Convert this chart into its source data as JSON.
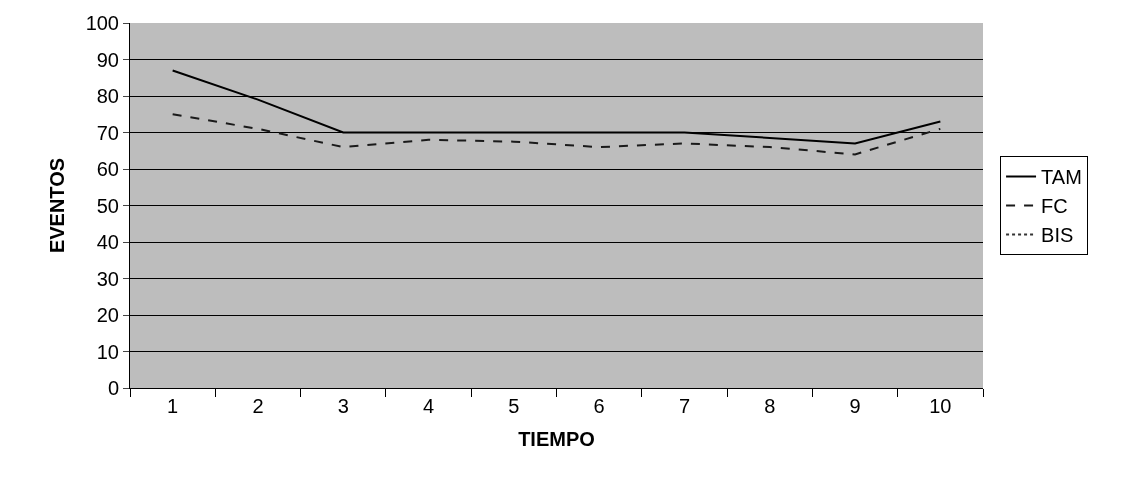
{
  "chart_data": {
    "type": "line",
    "xlabel": "TIEMPO",
    "ylabel": "EVENTOS",
    "categories": [
      "1",
      "2",
      "3",
      "4",
      "5",
      "6",
      "7",
      "8",
      "9",
      "10"
    ],
    "series": [
      {
        "name": "TAM",
        "color": "#000000",
        "line_style": "solid",
        "values": [
          87,
          79,
          70,
          70,
          70,
          70,
          70,
          68.5,
          67,
          73
        ]
      },
      {
        "name": "FC",
        "color": "#1a1a1a",
        "line_style": "dashed",
        "values": [
          75,
          71,
          66,
          68,
          67.5,
          66,
          67,
          66,
          64,
          71
        ]
      },
      {
        "name": "BIS",
        "color": "#333333",
        "line_style": "dotted",
        "values": [
          null,
          null,
          null,
          null,
          null,
          null,
          null,
          null,
          null,
          null
        ]
      }
    ],
    "ylim": [
      0,
      100
    ],
    "yticks": [
      0,
      10,
      20,
      30,
      40,
      50,
      60,
      70,
      80,
      90,
      100
    ],
    "grid": "y",
    "legend": "right",
    "marker": "none"
  }
}
